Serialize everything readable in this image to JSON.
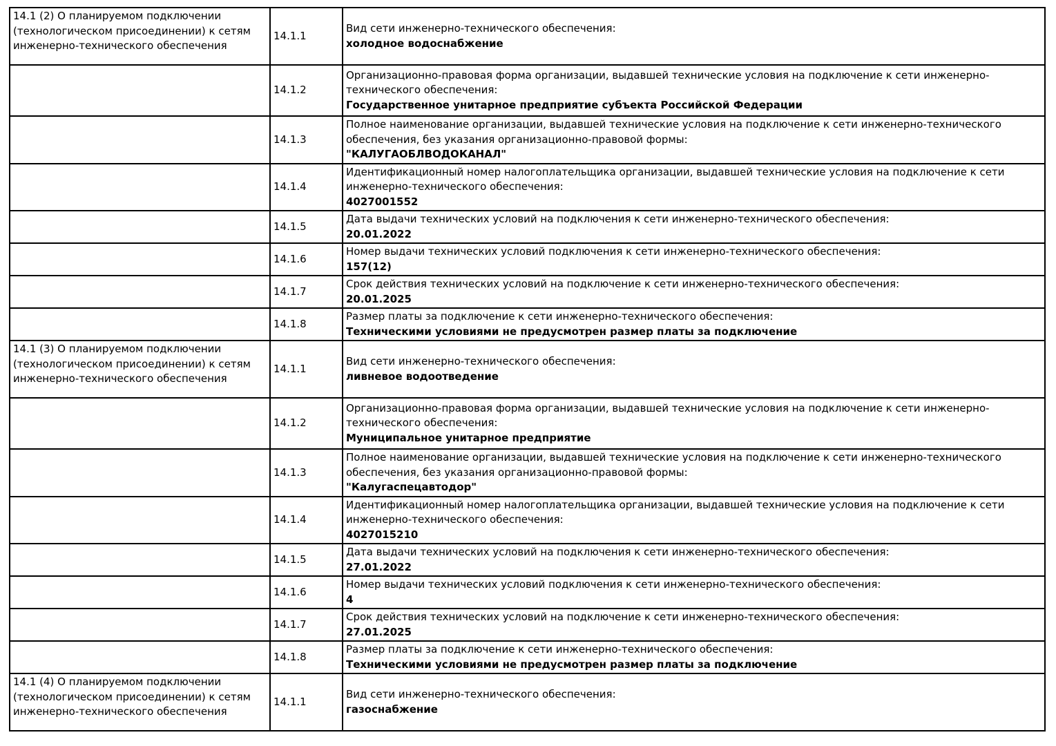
{
  "document": {
    "sections": [
      {
        "title": "14.1 (2) О планируемом подключении (технологическом присоединении) к сетям инженерно-технического обеспечения",
        "rows": [
          {
            "num": "14.1.1",
            "label": "Вид сети инженерно-технического обеспечения:",
            "value": "холодное водоснабжение",
            "size": "lines-4"
          },
          {
            "num": "14.1.2",
            "label": "Организационно-правовая форма организации, выдавшей технические условия на подключение к сети инженерно-технического обеспечения:",
            "value": "Государственное унитарное предприятие субъекта Российской Федерации",
            "size": "lines-3b"
          },
          {
            "num": "14.1.3",
            "label": "Полное наименование организации, выдавшей технические условия на подключение к сети инженерно-технического обеспечения, без указания организационно-правовой формы:",
            "value": "\"КАЛУГАОБЛВОДОКАНАЛ\"",
            "size": "lines-3"
          },
          {
            "num": "14.1.4",
            "label": "Идентификационный номер налогоплательщика организации, выдавшей технические условия на подключение к сети инженерно-технического обеспечения:",
            "value": "4027001552",
            "size": "lines-3"
          },
          {
            "num": "14.1.5",
            "label": "Дата выдачи технических условий на подключения к сети инженерно-технического обеспечения:",
            "value": "20.01.2022",
            "size": "lines-2"
          },
          {
            "num": "14.1.6",
            "label": "Номер выдачи технических условий подключения к сети инженерно-технического обеспечения:",
            "value": "157(12)",
            "size": "lines-2"
          },
          {
            "num": "14.1.7",
            "label": "Срок действия технических условий на подключение к сети инженерно-технического обеспечения:",
            "value": "20.01.2025",
            "size": "lines-2"
          },
          {
            "num": "14.1.8",
            "label": "Размер платы за подключение к сети инженерно-технического обеспечения:",
            "value": "Техническими условиями не предусмотрен размер платы за подключение",
            "size": "lines-2"
          }
        ]
      },
      {
        "title": "14.1 (3) О планируемом подключении (технологическом присоединении) к сетям инженерно-технического обеспечения",
        "rows": [
          {
            "num": "14.1.1",
            "label": "Вид сети инженерно-технического обеспечения:",
            "value": "ливневое водоотведение",
            "size": "lines-4"
          },
          {
            "num": "14.1.2",
            "label": "Организационно-правовая форма организации, выдавшей технические условия на подключение к сети инженерно-технического обеспечения:",
            "value": "Муниципальное унитарное предприятие",
            "size": "lines-3b"
          },
          {
            "num": "14.1.3",
            "label": "Полное наименование организации, выдавшей технические условия на подключение к сети инженерно-технического обеспечения, без указания организационно-правовой формы:",
            "value": "\"Калугаспецавтодор\"",
            "size": "lines-3"
          },
          {
            "num": "14.1.4",
            "label": "Идентификационный номер налогоплательщика организации, выдавшей технические условия на подключение к сети инженерно-технического обеспечения:",
            "value": "4027015210",
            "size": "lines-3"
          },
          {
            "num": "14.1.5",
            "label": "Дата выдачи технических условий на подключения к сети инженерно-технического обеспечения:",
            "value": "27.01.2022",
            "size": "lines-2"
          },
          {
            "num": "14.1.6",
            "label": "Номер выдачи технических условий подключения к сети инженерно-технического обеспечения:",
            "value": "4",
            "size": "lines-2"
          },
          {
            "num": "14.1.7",
            "label": "Срок действия технических условий на подключение к сети инженерно-технического обеспечения:",
            "value": "27.01.2025",
            "size": "lines-2"
          },
          {
            "num": "14.1.8",
            "label": "Размер платы за подключение к сети инженерно-технического обеспечения:",
            "value": "Техническими условиями не предусмотрен размер платы за подключение",
            "size": "lines-2"
          }
        ]
      },
      {
        "title": "14.1 (4) О планируемом подключении (технологическом присоединении) к сетям инженерно-технического обеспечения",
        "rows": [
          {
            "num": "14.1.1",
            "label": "Вид сети инженерно-технического обеспечения:",
            "value": "газоснабжение",
            "size": "lines-4"
          }
        ]
      }
    ]
  }
}
